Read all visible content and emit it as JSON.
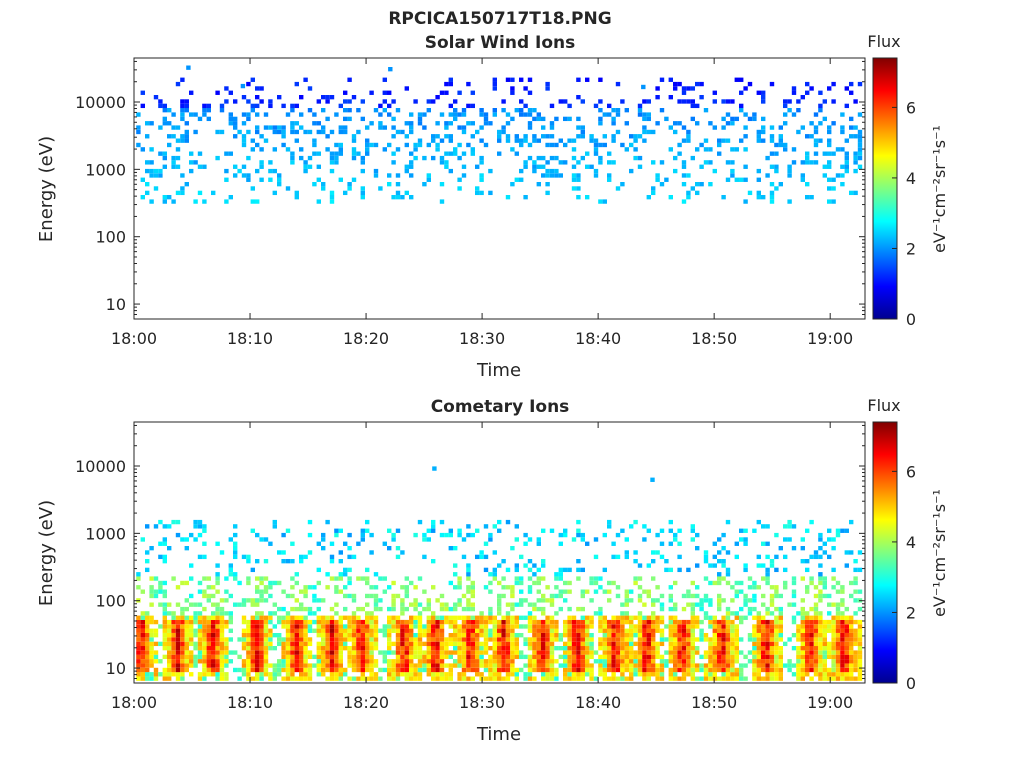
{
  "figure": {
    "title": "RPCICA150717T18.PNG"
  },
  "colorbar": {
    "title": "Flux",
    "units_label": "eV⁻¹cm⁻²sr⁻¹s⁻¹",
    "range": [
      0,
      7.4
    ],
    "ticks": [
      "0",
      "2",
      "4",
      "6"
    ],
    "tick_values": [
      0,
      2,
      4,
      6
    ],
    "colormap": "jet"
  },
  "chart_data": [
    {
      "type": "heatmap",
      "title": "Solar Wind Ions",
      "xlabel": "Time",
      "ylabel": "Energy (eV)",
      "x_range": [
        "18:00",
        "19:03"
      ],
      "x_ticks": [
        "18:00",
        "18:10",
        "18:20",
        "18:30",
        "18:40",
        "18:50",
        "19:00"
      ],
      "y_scale": "log",
      "y_range": [
        6,
        45000
      ],
      "y_ticks": [
        "10",
        "100",
        "1000",
        "10000"
      ],
      "z_range": [
        0,
        7.4
      ],
      "features": [
        {
          "desc": "sparse speckle",
          "energy_range_eV": [
            300,
            20000
          ],
          "flux_range": [
            1.6,
            2.8
          ]
        }
      ]
    },
    {
      "type": "heatmap",
      "title": "Cometary Ions",
      "xlabel": "Time",
      "ylabel": "Energy (eV)",
      "x_range": [
        "18:00",
        "19:03"
      ],
      "x_ticks": [
        "18:00",
        "18:10",
        "18:20",
        "18:30",
        "18:40",
        "18:50",
        "19:00"
      ],
      "y_scale": "log",
      "y_range": [
        6,
        45000
      ],
      "y_ticks": [
        "10",
        "100",
        "1000",
        "10000"
      ],
      "z_range": [
        0,
        7.4
      ],
      "features": [
        {
          "desc": "sparse speckle",
          "energy_range_eV": [
            150,
            1500
          ],
          "flux_range": [
            2.0,
            3.0
          ]
        },
        {
          "desc": "moderate flux",
          "energy_range_eV": [
            40,
            200
          ],
          "flux_range": [
            2.8,
            4.0
          ]
        },
        {
          "desc": "periodic bursts",
          "energy_range_eV": [
            6,
            60
          ],
          "flux_range": [
            3.5,
            7.2
          ]
        }
      ],
      "bursts_min": [
        0.4,
        3.6,
        6.6,
        10.4,
        13.8,
        16.9,
        19.4,
        23.1,
        25.8,
        28.8,
        31.7,
        35.0,
        38.0,
        41.3,
        44.0,
        47.1,
        50.5,
        54.3,
        58.1,
        61.0
      ],
      "isolated_points": [
        {
          "time": "18:25.7",
          "energy_eV": 8500,
          "flux": 2.2
        },
        {
          "time": "18:44.5",
          "energy_eV": 5800,
          "flux": 2.2
        }
      ]
    }
  ]
}
